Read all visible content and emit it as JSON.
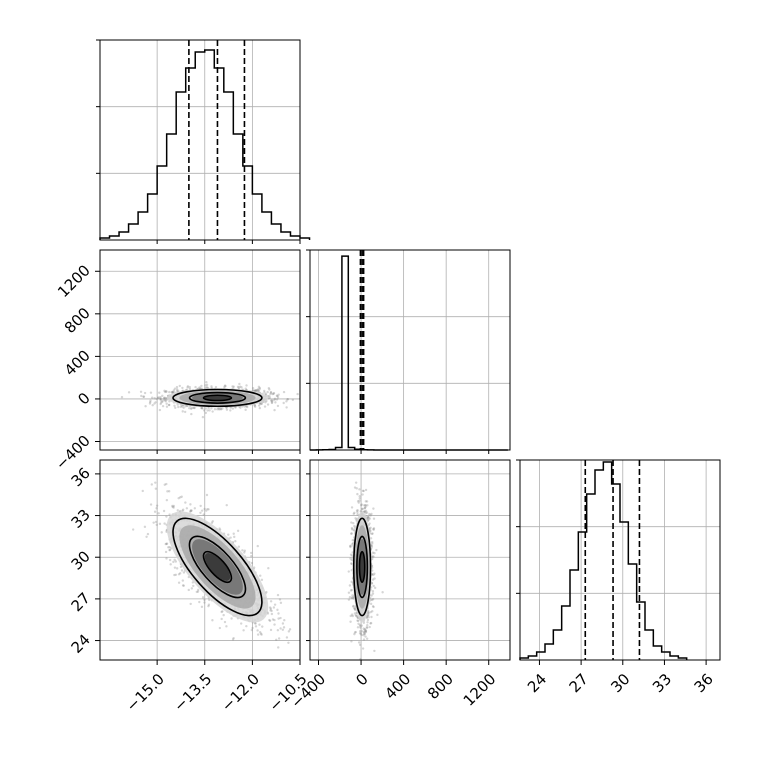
{
  "chart_data": {
    "type": "corner",
    "parameters": [
      {
        "name": "",
        "range": [
          -16.8,
          -10.5
        ],
        "ticks": [
          -15.0,
          -13.5,
          -12.0,
          -10.5
        ],
        "ticklabels": [
          "−15.0",
          "−13.5",
          "−12.0",
          "−10.5"
        ]
      },
      {
        "name": "",
        "range": [
          -480,
          1400
        ],
        "ticks": [
          -400,
          0,
          400,
          800,
          1200
        ],
        "ticklabels": [
          "−400",
          "0",
          "400",
          "800",
          "1200"
        ]
      },
      {
        "name": "",
        "range": [
          22.6,
          37.0
        ],
        "ticks": [
          24,
          27,
          30,
          33,
          36
        ],
        "ticklabels": [
          "24",
          "27",
          "30",
          "33",
          "36"
        ]
      }
    ],
    "diagonal_histograms": [
      {
        "param": 0,
        "bin_start": -16.8,
        "bin_width": 0.3,
        "counts": [
          1,
          2,
          4,
          8,
          14,
          23,
          37,
          53,
          74,
          86,
          94,
          95,
          86,
          74,
          53,
          37,
          23,
          14,
          8,
          4,
          2,
          1
        ],
        "quantiles": [
          -14.0,
          -13.1,
          -12.25
        ],
        "y_max": 100
      },
      {
        "param": 1,
        "bin_start": -480,
        "bin_width": 60,
        "counts": [
          0,
          1,
          2,
          3,
          16,
          1260,
          16,
          5,
          2,
          1,
          0,
          0,
          0,
          0,
          0,
          0,
          0,
          0,
          0,
          0,
          0,
          0,
          0,
          0,
          0,
          0,
          0,
          0,
          0,
          0,
          0
        ],
        "quantiles": [
          -6,
          10,
          24
        ],
        "y_max": 1300
      },
      {
        "param": 2,
        "bin_start": 22.6,
        "bin_width": 0.6,
        "counts": [
          1,
          2,
          4,
          8,
          15,
          27,
          45,
          64,
          83,
          95,
          99,
          88,
          69,
          48,
          29,
          15,
          7,
          4,
          2,
          1
        ],
        "quantiles": [
          27.3,
          29.3,
          31.2
        ],
        "y_max": 100
      }
    ],
    "pair_panels": [
      {
        "x_param": 0,
        "y_param": 1,
        "center": [
          -13.1,
          10
        ],
        "spread": [
          0.8,
          45
        ],
        "correlation": 0.0,
        "contour_levels": [
          1,
          2,
          3
        ]
      },
      {
        "x_param": 0,
        "y_param": 2,
        "center": [
          -13.1,
          29.3
        ],
        "spread": [
          0.8,
          2.0
        ],
        "correlation": -0.72,
        "contour_levels": [
          1,
          2,
          3
        ]
      },
      {
        "x_param": 1,
        "y_param": 2,
        "center": [
          10,
          29.3
        ],
        "spread": [
          45,
          2.0
        ],
        "correlation": 0.0,
        "contour_levels": [
          1,
          2,
          3
        ]
      }
    ],
    "grid": true,
    "quantile_lines": "dashed"
  }
}
